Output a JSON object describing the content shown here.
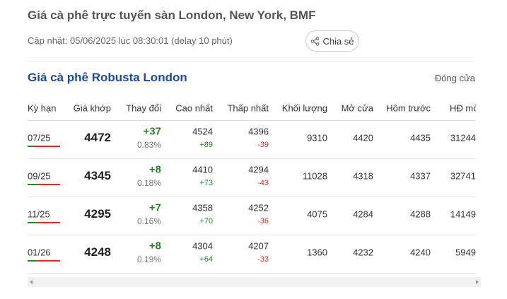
{
  "header": {
    "title": "Giá cà phê trực tuyến sàn London, New York, BMF",
    "updated": "Cập nhật: 05/06/2025 lúc 08:30:01 (delay 10 phút)",
    "share": "Chia sẻ"
  },
  "section": {
    "title": "Giá cà phê Robusta London",
    "status": "Đóng cửa"
  },
  "table": {
    "columns": [
      "Kỳ hạn",
      "Giá khớp",
      "Thay đổi",
      "Cao nhất",
      "Thấp nhất",
      "Khối lượng",
      "Mở cửa",
      "Hôm trước",
      "HĐ mở"
    ],
    "rows": [
      {
        "term": "07/25",
        "price": "4472",
        "change": "+37",
        "change_pct": "0.83%",
        "high": "4524",
        "high_diff": "+89",
        "low": "4396",
        "low_diff": "-39",
        "volume": "9310",
        "open": "4420",
        "prev": "4435",
        "open_interest": "31244"
      },
      {
        "term": "09/25",
        "price": "4345",
        "change": "+8",
        "change_pct": "0.18%",
        "high": "4410",
        "high_diff": "+73",
        "low": "4294",
        "low_diff": "-43",
        "volume": "11028",
        "open": "4318",
        "prev": "4337",
        "open_interest": "32741"
      },
      {
        "term": "11/25",
        "price": "4295",
        "change": "+7",
        "change_pct": "0.16%",
        "high": "4358",
        "high_diff": "+70",
        "low": "4252",
        "low_diff": "-36",
        "volume": "4075",
        "open": "4284",
        "prev": "4288",
        "open_interest": "14149"
      },
      {
        "term": "01/26",
        "price": "4248",
        "change": "+8",
        "change_pct": "0.19%",
        "high": "4304",
        "high_diff": "+64",
        "low": "4207",
        "low_diff": "-33",
        "volume": "1360",
        "open": "4232",
        "prev": "4240",
        "open_interest": "5949"
      }
    ]
  }
}
